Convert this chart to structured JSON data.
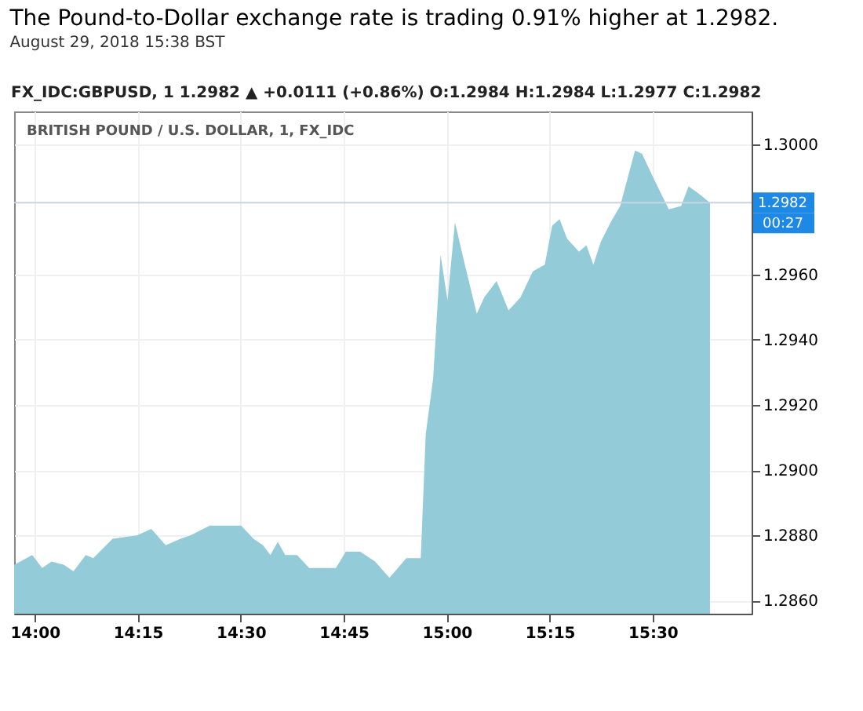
{
  "chart_data": {
    "type": "area",
    "title": "The Pound-to-Dollar exchange rate is trading 0.91% higher at 1.2982.",
    "subtitle": "August 29, 2018 15:38 BST",
    "annotations": [
      "FX_IDC:GBPUSD, 1  1.2982 ▲ +0.0111 (+0.86%)  O:1.2984  H:1.2984  L:1.2977  C:1.2982",
      "BRITISH POUND / U.S. DOLLAR, 1, FX_IDC",
      "00:27"
    ],
    "series": [
      {
        "color": "#93cbd9",
        "x": [
          13.95,
          13.994,
          14.018,
          14.041,
          14.071,
          14.094,
          14.124,
          14.142,
          14.189,
          14.248,
          14.283,
          14.318,
          14.354,
          14.378,
          14.425,
          14.466,
          14.501,
          14.531,
          14.554,
          14.572,
          14.59,
          14.608,
          14.637,
          14.666,
          14.731,
          14.755,
          14.79,
          14.826,
          14.861,
          14.902,
          14.937,
          14.949,
          14.967,
          14.985,
          15.002,
          15.02,
          15.044,
          15.073,
          15.091,
          15.121,
          15.15,
          15.179,
          15.209,
          15.238,
          15.256,
          15.274,
          15.292,
          15.321,
          15.339,
          15.356,
          15.374,
          15.398,
          15.421,
          15.457,
          15.474,
          15.504,
          15.539,
          15.569,
          15.587,
          15.61,
          15.639
        ],
        "values": [
          1.2871,
          1.2874,
          1.287,
          1.2872,
          1.2871,
          1.2869,
          1.2874,
          1.2873,
          1.2879,
          1.288,
          1.2882,
          1.2877,
          1.2879,
          1.288,
          1.2883,
          1.2883,
          1.2883,
          1.2879,
          1.2877,
          1.2874,
          1.2878,
          1.2874,
          1.2874,
          1.287,
          1.287,
          1.2875,
          1.2875,
          1.2872,
          1.2867,
          1.2873,
          1.2873,
          1.2911,
          1.2928,
          1.2966,
          1.2952,
          1.2976,
          1.2963,
          1.2948,
          1.2953,
          1.2958,
          1.2949,
          1.2953,
          1.2961,
          1.2963,
          1.2975,
          1.2977,
          1.2971,
          1.2967,
          1.2969,
          1.2963,
          1.297,
          1.2976,
          1.2981,
          1.2998,
          1.2997,
          1.2989,
          1.298,
          1.2981,
          1.2987,
          1.2985,
          1.2982
        ]
      }
    ],
    "xlim": [
      13.95,
      15.74
    ],
    "ylim": [
      1.2856,
      1.301
    ],
    "xticks": [
      {
        "value": 14,
        "label": "14:00"
      },
      {
        "value": 14.25,
        "label": "14:15"
      },
      {
        "value": 14.5,
        "label": "14:30"
      },
      {
        "value": 14.75,
        "label": "14:45"
      },
      {
        "value": 15,
        "label": "15:00"
      },
      {
        "value": 15.25,
        "label": "15:15"
      },
      {
        "value": 15.5,
        "label": "15:30"
      }
    ],
    "yticks": [
      {
        "value": 1.286,
        "label": "1.2860"
      },
      {
        "value": 1.288,
        "label": "1.2880"
      },
      {
        "value": 1.29,
        "label": "1.2900"
      },
      {
        "value": 1.292,
        "label": "1.2920"
      },
      {
        "value": 1.294,
        "label": "1.2940"
      },
      {
        "value": 1.296,
        "label": "1.2960"
      },
      {
        "value": 1.3,
        "label": "1.3000"
      }
    ],
    "ref_lines": [
      {
        "axis": "y",
        "value": 1.2982,
        "label": "1.2982",
        "color": "#c6d4e0"
      }
    ],
    "grid": true
  }
}
